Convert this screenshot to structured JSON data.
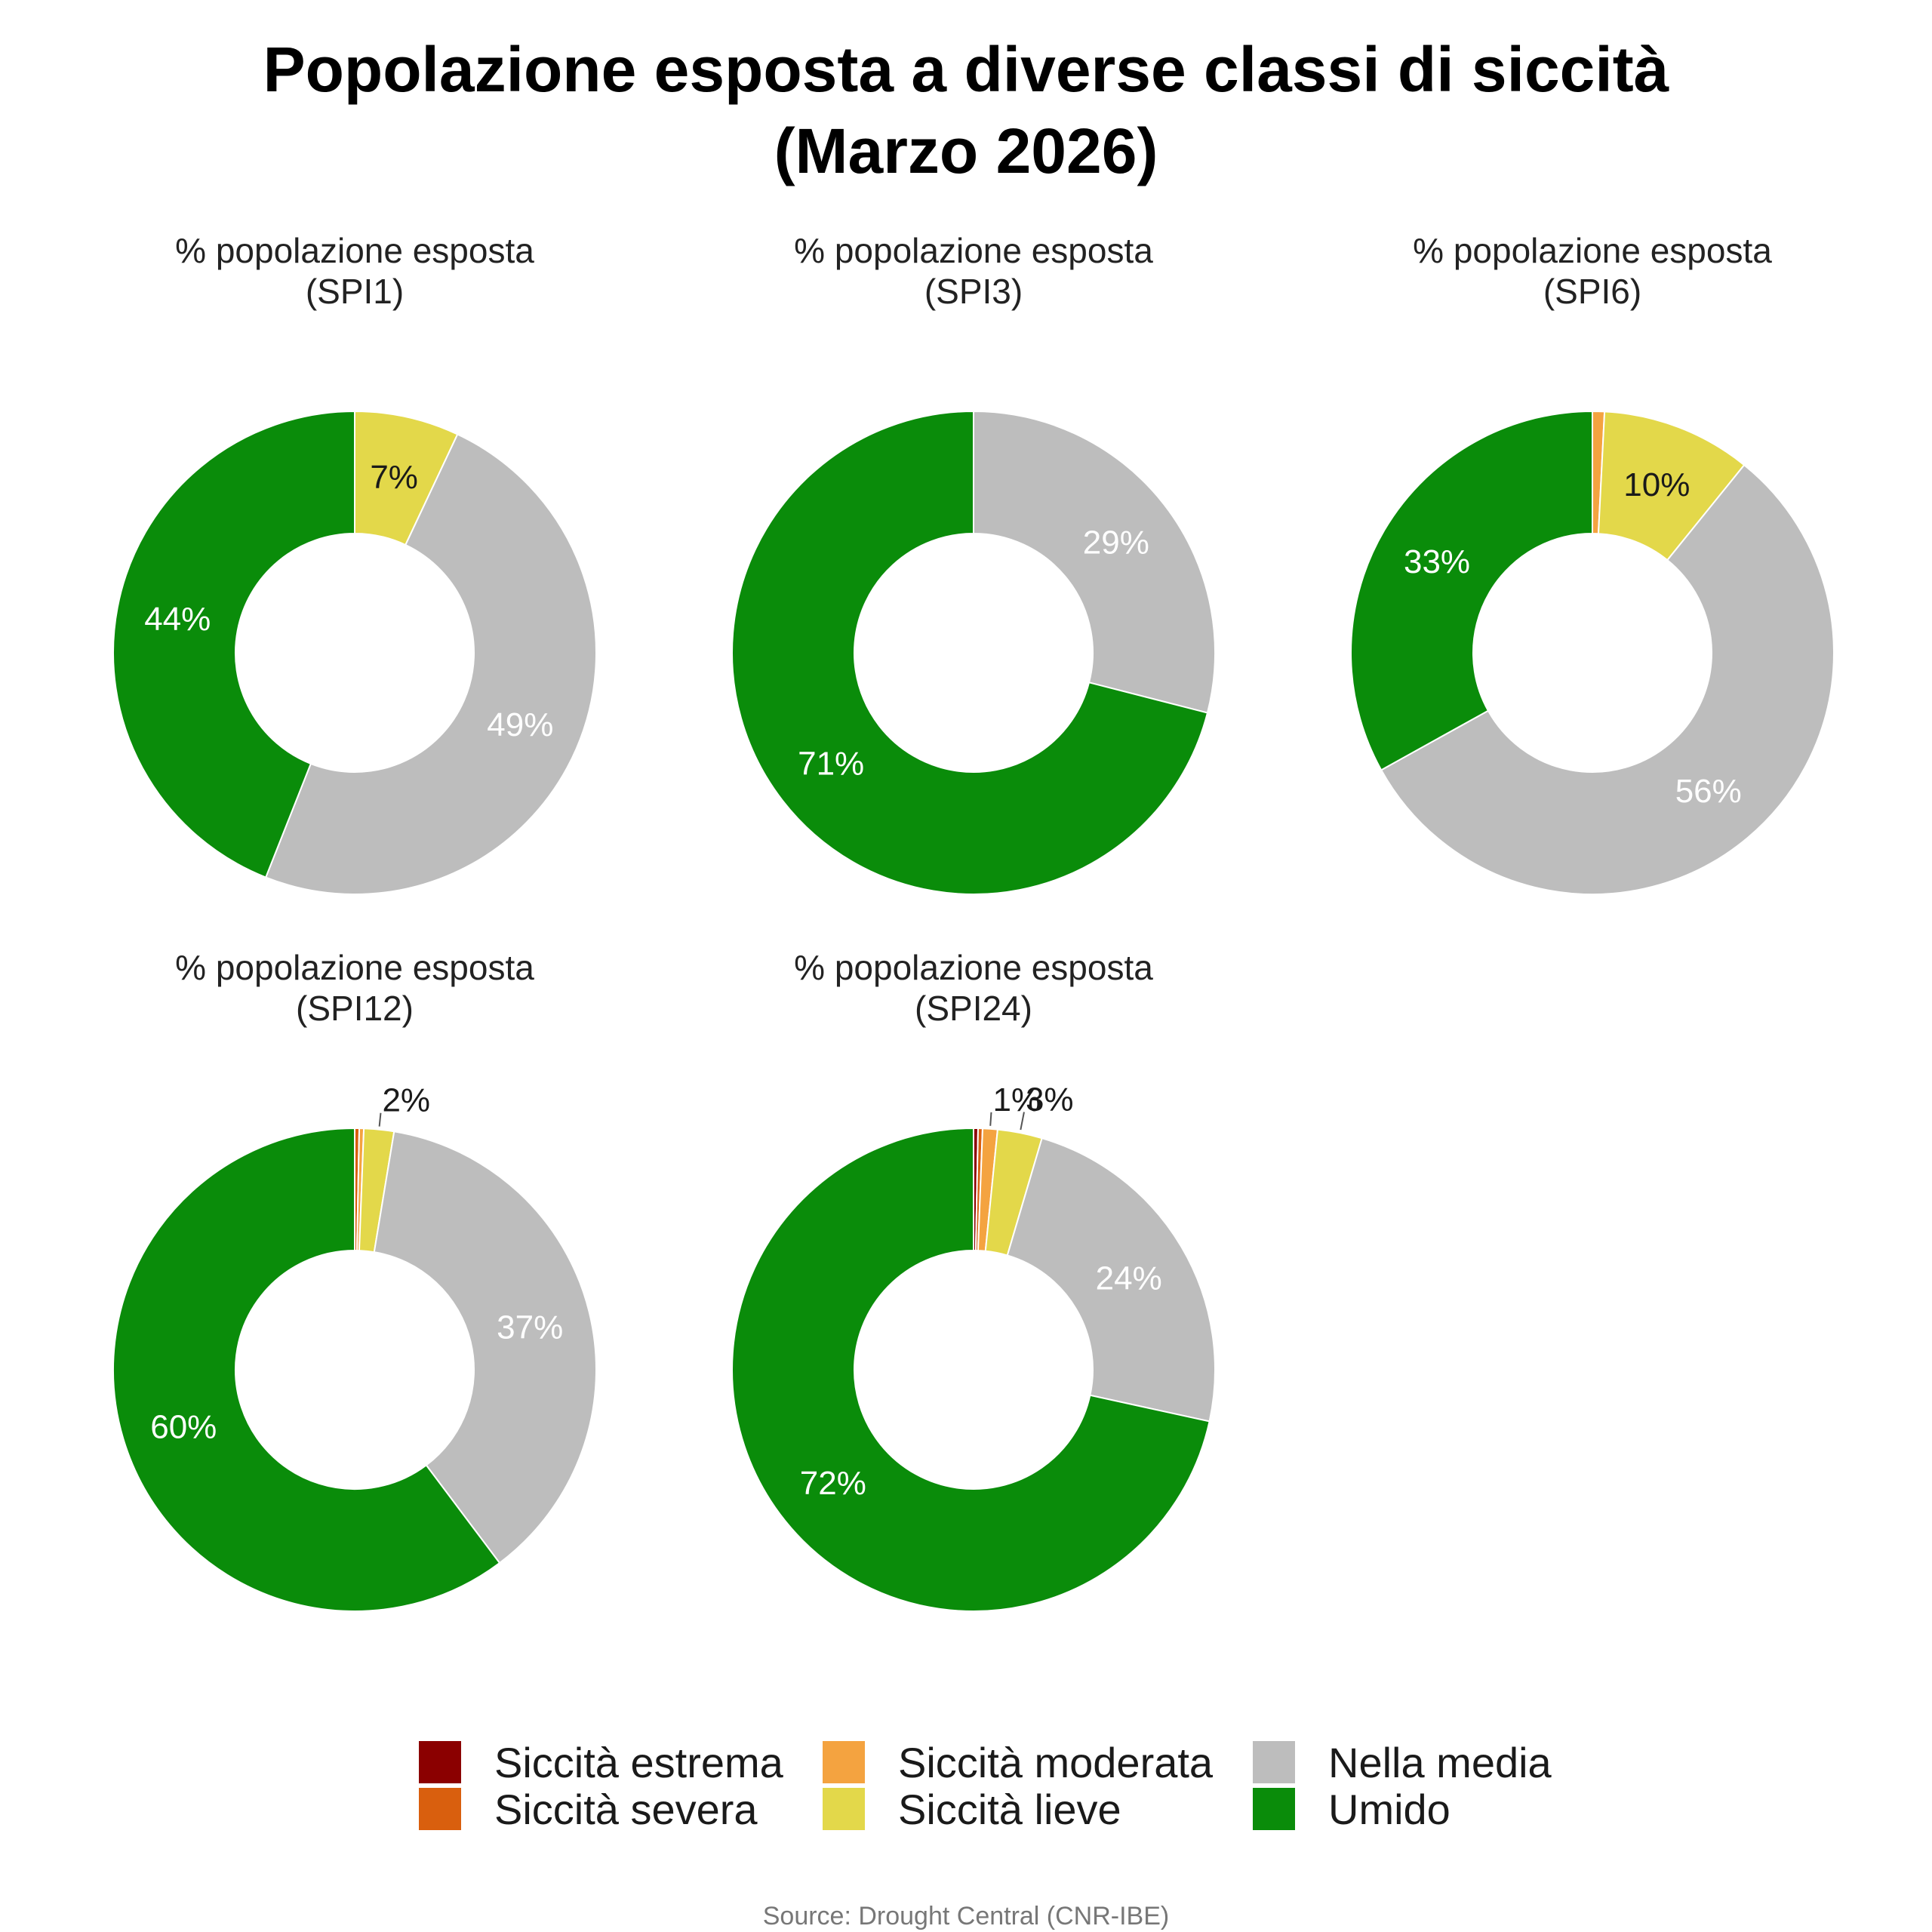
{
  "title": {
    "line1": "Popolazione esposta a diverse classi di siccità",
    "line2": "(Marzo 2026)"
  },
  "source": "Source: Drought Central (CNR-IBE)",
  "categories": [
    "Siccità estrema",
    "Siccità severa",
    "Siccità moderata",
    "Siccità lieve",
    "Nella media",
    "Umido"
  ],
  "colors": {
    "Siccità estrema": "#8b0000",
    "Siccità severa": "#d95f0e",
    "Siccità moderata": "#f4a340",
    "Siccità lieve": "#e3d84a",
    "Nella media": "#bdbdbd",
    "Umido": "#0a8c0a"
  },
  "legend": {
    "items": [
      {
        "label": "Siccità estrema"
      },
      {
        "label": "Siccità severa"
      },
      {
        "label": "Siccità moderata"
      },
      {
        "label": "Siccità lieve"
      },
      {
        "label": "Nella media"
      },
      {
        "label": "Umido"
      }
    ]
  },
  "chart_data": [
    {
      "type": "pie",
      "title_line1": "% popolazione esposta",
      "title_line2": "(SPI1)",
      "categories": [
        "Siccità estrema",
        "Siccità severa",
        "Siccità moderata",
        "Siccità lieve",
        "Nella media",
        "Umido"
      ],
      "values": [
        0,
        0,
        0,
        7,
        49,
        44
      ],
      "labels": [
        "",
        "",
        "",
        "7%",
        "49%",
        "44%"
      ]
    },
    {
      "type": "pie",
      "title_line1": "% popolazione esposta",
      "title_line2": "(SPI3)",
      "categories": [
        "Siccità estrema",
        "Siccità severa",
        "Siccità moderata",
        "Siccità lieve",
        "Nella media",
        "Umido"
      ],
      "values": [
        0,
        0,
        0,
        0,
        29,
        71
      ],
      "labels": [
        "",
        "",
        "",
        "",
        "29%",
        "71%"
      ]
    },
    {
      "type": "pie",
      "title_line1": "% popolazione esposta",
      "title_line2": "(SPI6)",
      "categories": [
        "Siccità estrema",
        "Siccità severa",
        "Siccità moderata",
        "Siccità lieve",
        "Nella media",
        "Umido"
      ],
      "values": [
        0,
        0,
        0.8,
        10,
        56,
        33
      ],
      "labels": [
        "",
        "",
        "",
        "10%",
        "56%",
        "33%"
      ]
    },
    {
      "type": "pie",
      "title_line1": "% popolazione esposta",
      "title_line2": "(SPI12)",
      "categories": [
        "Siccità estrema",
        "Siccità severa",
        "Siccità moderata",
        "Siccità lieve",
        "Nella media",
        "Umido"
      ],
      "values": [
        0,
        0.3,
        0.3,
        2,
        37,
        60
      ],
      "labels": [
        "",
        "",
        "",
        "2%",
        "37%",
        "60%"
      ]
    },
    {
      "type": "pie",
      "title_line1": "% popolazione esposta",
      "title_line2": "(SPI24)",
      "categories": [
        "Siccità estrema",
        "Siccità severa",
        "Siccità moderata",
        "Siccità lieve",
        "Nella media",
        "Umido"
      ],
      "values": [
        0.3,
        0.3,
        1,
        3,
        24,
        72
      ],
      "labels": [
        "",
        "",
        "1%",
        "3%",
        "24%",
        "72%"
      ]
    }
  ]
}
